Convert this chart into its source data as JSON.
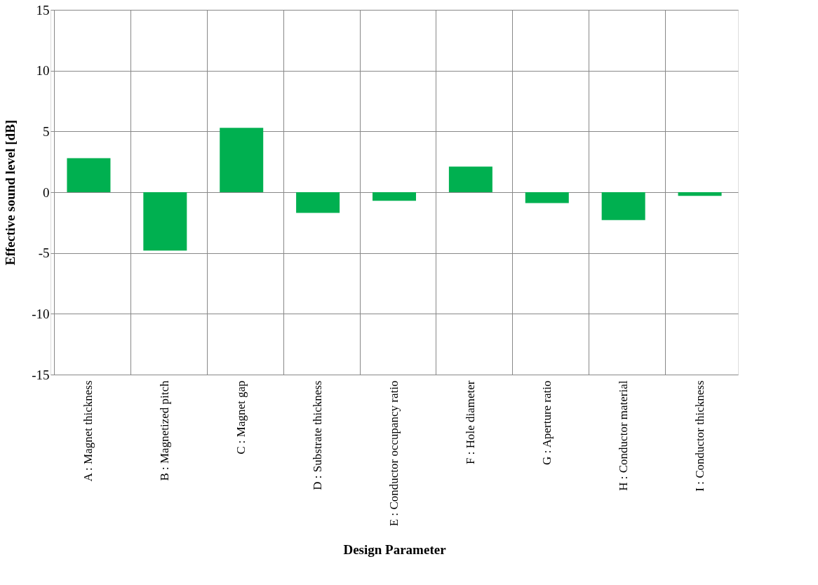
{
  "chart_data": {
    "type": "bar",
    "xlabel": "Design Parameter",
    "ylabel": "Effective sound level [dB]",
    "categories": [
      "A : Magnet thickness",
      "B : Magnetized pitch",
      "C : Magnet gap",
      "D : Substrate thickness",
      "E : Conductor occupancy ratio",
      "F : Hole diameter",
      "G : Aperture ratio",
      "H : Conductor material",
      "I : Conductor thickness"
    ],
    "series": [
      {
        "color": "#00b050",
        "values": [
          2.8,
          -4.8,
          5.3,
          -1.7,
          -0.7,
          2.1,
          -0.9,
          -2.3,
          -0.3
        ]
      }
    ],
    "ylim": [
      -15,
      15
    ],
    "yticks": [
      -15,
      -10,
      -5,
      0,
      5,
      10,
      15
    ],
    "grid": true
  }
}
